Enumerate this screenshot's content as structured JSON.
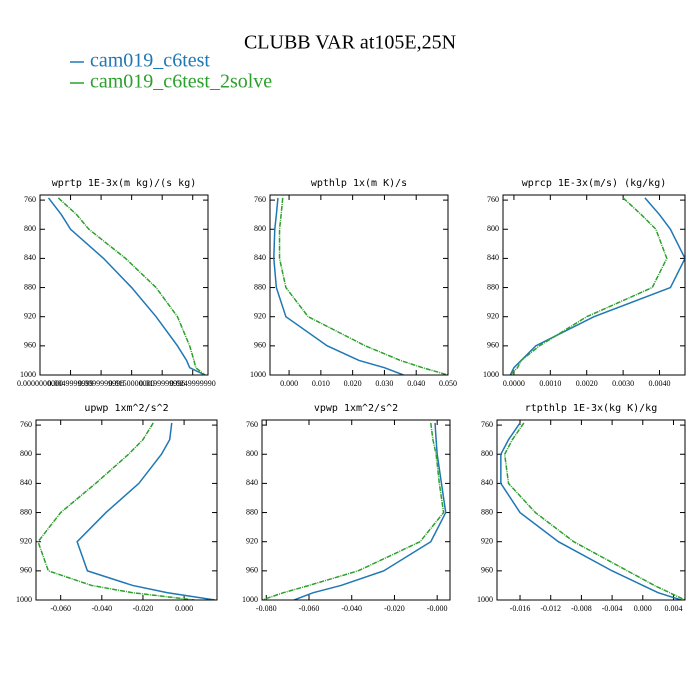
{
  "title": "CLUBB VAR at105E,25N",
  "chart_data": [
    {
      "type": "line",
      "title": "wprtp  1E-3x(m kg)/(s kg)",
      "y": [
        757,
        780,
        800,
        840,
        880,
        920,
        960,
        980,
        990,
        1000
      ],
      "series": [
        {
          "name": "cam019_c6test",
          "color": "#1f77b4",
          "values": [
            0.0014,
            0.0035,
            0.005,
            0.0104,
            0.015,
            0.019,
            0.0225,
            0.024,
            0.0245,
            0.027
          ]
        },
        {
          "name": "cam019_c6test_2solve",
          "color": "#2ca02c",
          "values": [
            0.003,
            0.006,
            0.008,
            0.014,
            0.019,
            0.0225,
            0.0245,
            0.0252,
            0.0255,
            0.027
          ]
        }
      ],
      "xlim": [
        0,
        0.0275
      ],
      "ylim": [
        1000,
        753
      ],
      "xticks": [
        {
          "value": 0,
          "label": "0.0000000000"
        },
        {
          "value": 0.005,
          "label": "0.0049999999"
        },
        {
          "value": 0.01,
          "label": "0.0099999998"
        },
        {
          "value": 0.015,
          "label": "0.0150000000"
        },
        {
          "value": 0.02,
          "label": "0.0199999996"
        },
        {
          "value": 0.025,
          "label": "0.0249999990"
        }
      ],
      "yticks": [
        760,
        800,
        840,
        880,
        920,
        960,
        1000
      ]
    },
    {
      "type": "line",
      "title": "wpthlp  1x(m K)/s",
      "y": [
        757,
        780,
        800,
        840,
        880,
        920,
        960,
        980,
        990,
        1000
      ],
      "series": [
        {
          "name": "cam019_c6test",
          "color": "#1f77b4",
          "values": [
            -0.0035,
            -0.004,
            -0.0045,
            -0.0048,
            -0.004,
            -0.001,
            0.012,
            0.022,
            0.03,
            0.036
          ]
        },
        {
          "name": "cam019_c6test_2solve",
          "color": "#2ca02c",
          "values": [
            -0.002,
            -0.0025,
            -0.003,
            -0.003,
            -0.001,
            0.006,
            0.024,
            0.035,
            0.042,
            0.05
          ]
        }
      ],
      "xlim": [
        -0.006,
        0.05
      ],
      "ylim": [
        1000,
        753
      ],
      "xticks": [
        {
          "value": 0,
          "label": "0.000"
        },
        {
          "value": 0.01,
          "label": "0.010"
        },
        {
          "value": 0.02,
          "label": "0.020"
        },
        {
          "value": 0.03,
          "label": "0.030"
        },
        {
          "value": 0.04,
          "label": "0.040"
        },
        {
          "value": 0.05,
          "label": "0.050"
        }
      ],
      "yticks": [
        760,
        800,
        840,
        880,
        920,
        960,
        1000
      ]
    },
    {
      "type": "line",
      "title": "wprcp  1E-3x(m/s) (kg/kg)",
      "y": [
        757,
        780,
        800,
        840,
        880,
        920,
        960,
        980,
        990,
        1000
      ],
      "series": [
        {
          "name": "cam019_c6test",
          "color": "#1f77b4",
          "values": [
            0.0036,
            0.004,
            0.0043,
            0.0047,
            0.0043,
            0.0022,
            0.0006,
            0.0002,
            0.0,
            -0.0001
          ]
        },
        {
          "name": "cam019_c6test_2solve",
          "color": "#2ca02c",
          "values": [
            0.003,
            0.0035,
            0.0039,
            0.0042,
            0.0038,
            0.002,
            0.0007,
            0.0002,
            0.0001,
            -0.0001
          ]
        }
      ],
      "xlim": [
        -0.0003,
        0.0047
      ],
      "ylim": [
        1000,
        753
      ],
      "xticks": [
        {
          "value": 0,
          "label": "0.0000"
        },
        {
          "value": 0.001,
          "label": "0.0010"
        },
        {
          "value": 0.002,
          "label": "0.0020"
        },
        {
          "value": 0.003,
          "label": "0.0030"
        },
        {
          "value": 0.004,
          "label": "0.0040"
        }
      ],
      "yticks": [
        760,
        800,
        840,
        880,
        920,
        960,
        1000
      ]
    },
    {
      "type": "line",
      "title": "upwp  1xm^2/s^2",
      "y": [
        757,
        780,
        800,
        840,
        880,
        920,
        960,
        980,
        990,
        1000
      ],
      "series": [
        {
          "name": "cam019_c6test",
          "color": "#1f77b4",
          "values": [
            -0.006,
            -0.007,
            -0.011,
            -0.022,
            -0.038,
            -0.052,
            -0.047,
            -0.025,
            -0.008,
            0.015
          ]
        },
        {
          "name": "cam019_c6test_2solve",
          "color": "#2ca02c",
          "values": [
            -0.015,
            -0.02,
            -0.027,
            -0.043,
            -0.06,
            -0.071,
            -0.066,
            -0.045,
            -0.025,
            0.005
          ]
        }
      ],
      "xlim": [
        -0.072,
        0.016
      ],
      "ylim": [
        1000,
        753
      ],
      "xticks": [
        {
          "value": -0.06,
          "label": "-0.060"
        },
        {
          "value": -0.04,
          "label": "-0.040"
        },
        {
          "value": -0.02,
          "label": "-0.020"
        },
        {
          "value": 0,
          "label": "0.000"
        }
      ],
      "yticks": [
        760,
        800,
        840,
        880,
        920,
        960,
        1000
      ]
    },
    {
      "type": "line",
      "title": "vpwp  1xm^2/s^2",
      "y": [
        757,
        780,
        800,
        840,
        880,
        920,
        960,
        980,
        990,
        1000
      ],
      "series": [
        {
          "name": "cam019_c6test",
          "color": "#1f77b4",
          "values": [
            -0.001,
            -0.0005,
            0.0,
            0.002,
            0.004,
            -0.003,
            -0.025,
            -0.045,
            -0.058,
            -0.067
          ]
        },
        {
          "name": "cam019_c6test_2solve",
          "color": "#2ca02c",
          "values": [
            -0.003,
            -0.002,
            -0.0005,
            0.001,
            0.003,
            -0.008,
            -0.037,
            -0.06,
            -0.072,
            -0.082
          ]
        }
      ],
      "xlim": [
        -0.082,
        0.006
      ],
      "ylim": [
        1000,
        753
      ],
      "xticks": [
        {
          "value": -0.08,
          "label": "-0.080"
        },
        {
          "value": -0.06,
          "label": "-0.060"
        },
        {
          "value": -0.04,
          "label": "-0.040"
        },
        {
          "value": -0.02,
          "label": "-0.020"
        },
        {
          "value": 0,
          "label": "-0.000"
        }
      ],
      "yticks": [
        760,
        800,
        840,
        880,
        920,
        960,
        1000
      ]
    },
    {
      "type": "line",
      "title": "rtpthlp  1E-3x(kg K)/kg",
      "y": [
        757,
        780,
        800,
        840,
        880,
        920,
        960,
        980,
        990,
        1000
      ],
      "series": [
        {
          "name": "cam019_c6test",
          "color": "#1f77b4",
          "values": [
            -0.016,
            -0.0175,
            -0.0185,
            -0.0185,
            -0.016,
            -0.011,
            -0.004,
            0.0,
            0.002,
            0.005
          ]
        },
        {
          "name": "cam019_c6test_2solve",
          "color": "#2ca02c",
          "values": [
            -0.0155,
            -0.017,
            -0.018,
            -0.0175,
            -0.014,
            -0.009,
            -0.002,
            0.0015,
            0.0035,
            0.0055
          ]
        }
      ],
      "xlim": [
        -0.019,
        0.0055
      ],
      "ylim": [
        1000,
        753
      ],
      "xticks": [
        {
          "value": -0.016,
          "label": "-0.016"
        },
        {
          "value": -0.012,
          "label": "-0.012"
        },
        {
          "value": -0.008,
          "label": "-0.008"
        },
        {
          "value": -0.004,
          "label": "-0.004"
        },
        {
          "value": 0,
          "label": "0.000"
        },
        {
          "value": 0.004,
          "label": "0.004"
        }
      ],
      "yticks": [
        760,
        800,
        840,
        880,
        920,
        960,
        1000
      ]
    }
  ]
}
